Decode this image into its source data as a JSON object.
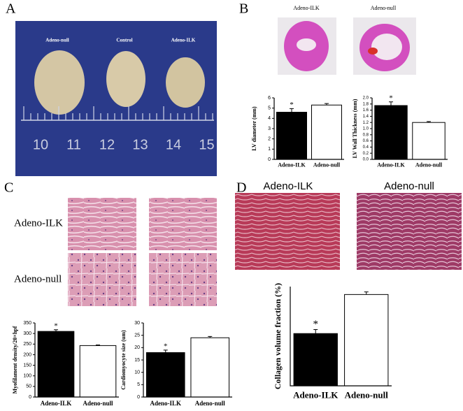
{
  "figure": {
    "panels": [
      "A",
      "B",
      "C",
      "D"
    ],
    "photo_labels": [
      "Adeno-null",
      "Control",
      "Adeno-ILK"
    ],
    "ruler": [
      "10",
      "11",
      "12",
      "13",
      "14",
      "15"
    ],
    "b_images": [
      "Adeno-ILK",
      "Adeno-null"
    ],
    "c_rows": [
      "Adeno-ILK",
      "Adeno-null"
    ],
    "d_images": [
      "Adeno-ILK",
      "Adeno-null"
    ]
  },
  "chart_data": [
    {
      "type": "bar",
      "y_label": "LV diameter (mm)",
      "categories": [
        "Adeno-ILK",
        "Adeno-null"
      ],
      "values": [
        4.6,
        5.3
      ],
      "errors": [
        0.35,
        0.15
      ],
      "colors": [
        "#000000",
        "#ffffff"
      ],
      "ylim": [
        0,
        6
      ],
      "yticks": [
        0,
        1,
        2,
        3,
        4,
        5,
        6
      ],
      "annotation": "*"
    },
    {
      "type": "bar",
      "y_label": "LV Wall Thickness (mm)",
      "categories": [
        "Adeno-ILK",
        "Adeno-null"
      ],
      "values": [
        1.75,
        1.2
      ],
      "errors": [
        0.12,
        0.03
      ],
      "colors": [
        "#000000",
        "#ffffff"
      ],
      "ylim": [
        0,
        2
      ],
      "yticks": [
        {
          "value": 0,
          "label": "0.0"
        },
        {
          "value": 0.2,
          "label": "0.2"
        },
        {
          "value": 0.4,
          "label": "0.4"
        },
        {
          "value": 0.6,
          "label": "0.6"
        },
        {
          "value": 0.8,
          "label": "0.8"
        },
        {
          "value": 1,
          "label": "1.0"
        },
        {
          "value": 1.2,
          "label": "1.2"
        },
        {
          "value": 1.4,
          "label": "1.4"
        },
        {
          "value": 1.6,
          "label": "1.6"
        },
        {
          "value": 1.8,
          "label": "1.8"
        },
        {
          "value": 2,
          "label": "2.0"
        }
      ],
      "annotation": "*"
    },
    {
      "type": "bar",
      "y_label": "Myofilament density/20×hpf",
      "categories": [
        "Adeno-ILK",
        "Adeno-null"
      ],
      "values": [
        310,
        243
      ],
      "errors": [
        8,
        3
      ],
      "colors": [
        "#000000",
        "#ffffff"
      ],
      "ylim": [
        0,
        350
      ],
      "yticks": [
        0,
        50,
        100,
        150,
        200,
        250,
        300,
        350
      ],
      "annotation": "*"
    },
    {
      "type": "bar",
      "y_label": "Cardiomyocyte size (um)",
      "categories": [
        "Adeno-ILK",
        "Adeno-null"
      ],
      "values": [
        18,
        24
      ],
      "errors": [
        1,
        0.5
      ],
      "colors": [
        "#000000",
        "#ffffff"
      ],
      "ylim": [
        0,
        30
      ],
      "yticks": [
        0,
        5,
        10,
        15,
        20,
        25,
        30
      ],
      "annotation": "*"
    },
    {
      "type": "bar",
      "y_label": "Collagen volume fraction (%)",
      "categories": [
        "Adeno-ILK",
        "Adeno-null"
      ],
      "values": [
        15.8,
        27.6
      ],
      "errors": [
        1.2,
        0.8
      ],
      "colors": [
        "#000000",
        "#ffffff"
      ],
      "ylim": [
        0,
        30
      ],
      "yticks": [],
      "annotation": "*"
    }
  ]
}
